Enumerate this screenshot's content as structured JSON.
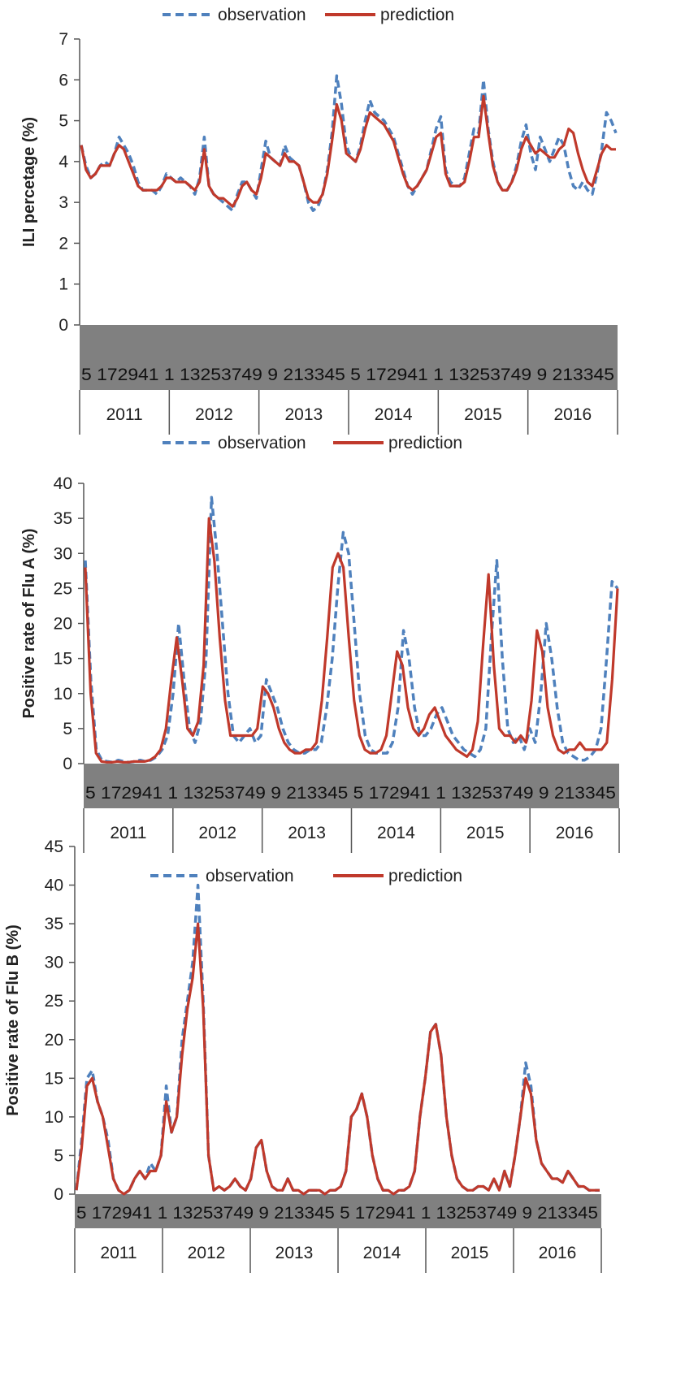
{
  "colors": {
    "observation": "#4f81bd",
    "prediction": "#c0392b",
    "axis_band": "#808080",
    "axis_line": "#555555"
  },
  "legend": {
    "observation": "observation",
    "prediction": "prediction"
  },
  "chart_data": [
    {
      "type": "line",
      "ylabel": "ILI percetage (%)",
      "ylim": [
        0,
        7
      ],
      "yticks": [
        0,
        1,
        2,
        3,
        4,
        5,
        6,
        7
      ],
      "week_labels": "5 172941 1 13253749 9 213345 5 172941 1 13253749 9 213345",
      "years": [
        "2011",
        "2012",
        "2013",
        "2014",
        "2015",
        "2016"
      ],
      "legend_position": "top-center",
      "grid": false,
      "series": [
        {
          "name": "observation",
          "style": "dashed",
          "values": [
            4.4,
            3.9,
            3.6,
            3.7,
            3.9,
            4.0,
            3.9,
            4.2,
            4.6,
            4.4,
            4.2,
            3.9,
            3.5,
            3.3,
            3.3,
            3.3,
            3.2,
            3.4,
            3.7,
            3.6,
            3.5,
            3.6,
            3.5,
            3.4,
            3.2,
            3.6,
            4.6,
            3.4,
            3.2,
            3.1,
            3.0,
            2.9,
            2.8,
            3.2,
            3.5,
            3.5,
            3.3,
            3.1,
            3.8,
            4.5,
            4.1,
            4.0,
            3.9,
            4.4,
            4.1,
            4.0,
            3.9,
            3.5,
            3.0,
            2.8,
            2.9,
            3.2,
            3.8,
            4.7,
            6.1,
            5.4,
            4.4,
            4.1,
            4.0,
            4.4,
            5.0,
            5.5,
            5.2,
            5.1,
            5.0,
            4.8,
            4.6,
            4.2,
            3.8,
            3.4,
            3.2,
            3.4,
            3.6,
            3.8,
            4.3,
            4.8,
            5.1,
            3.8,
            3.5,
            3.4,
            3.4,
            3.6,
            4.2,
            4.8,
            4.7,
            6.0,
            4.8,
            4.0,
            3.5,
            3.3,
            3.3,
            3.5,
            3.9,
            4.5,
            4.9,
            4.2,
            3.8,
            4.6,
            4.3,
            4.0,
            4.3,
            4.6,
            4.4,
            3.8,
            3.4,
            3.3,
            3.5,
            3.3,
            3.2,
            3.7,
            4.3,
            5.2,
            5.0,
            4.7
          ]
        },
        {
          "name": "prediction",
          "style": "solid",
          "values": [
            4.4,
            3.8,
            3.6,
            3.7,
            3.9,
            3.9,
            3.9,
            4.2,
            4.4,
            4.3,
            4.0,
            3.7,
            3.4,
            3.3,
            3.3,
            3.3,
            3.3,
            3.4,
            3.6,
            3.6,
            3.5,
            3.5,
            3.5,
            3.4,
            3.3,
            3.5,
            4.3,
            3.4,
            3.2,
            3.1,
            3.1,
            3.0,
            2.9,
            3.1,
            3.4,
            3.5,
            3.3,
            3.2,
            3.6,
            4.2,
            4.1,
            4.0,
            3.9,
            4.2,
            4.0,
            4.0,
            3.9,
            3.5,
            3.1,
            3.0,
            3.0,
            3.2,
            3.7,
            4.5,
            5.4,
            5.0,
            4.2,
            4.1,
            4.0,
            4.3,
            4.8,
            5.2,
            5.1,
            5.0,
            4.9,
            4.7,
            4.5,
            4.1,
            3.7,
            3.4,
            3.3,
            3.4,
            3.6,
            3.8,
            4.2,
            4.6,
            4.7,
            3.7,
            3.4,
            3.4,
            3.4,
            3.5,
            4.0,
            4.6,
            4.6,
            5.6,
            4.7,
            3.9,
            3.5,
            3.3,
            3.3,
            3.5,
            3.8,
            4.3,
            4.6,
            4.4,
            4.2,
            4.3,
            4.2,
            4.1,
            4.1,
            4.3,
            4.4,
            4.8,
            4.7,
            4.2,
            3.8,
            3.5,
            3.4,
            3.8,
            4.2,
            4.4,
            4.3,
            4.3
          ]
        }
      ]
    },
    {
      "type": "line",
      "ylabel": "Positive rate of Flu A (%)",
      "ylim": [
        0,
        40
      ],
      "yticks": [
        0,
        5,
        10,
        15,
        20,
        25,
        30,
        35,
        40
      ],
      "week_labels": "5 172941 1 13253749 9 213345 5 172941 1 13253749 9 213345",
      "years": [
        "2011",
        "2012",
        "2013",
        "2014",
        "2015",
        "2016"
      ],
      "legend_position": "top-center",
      "grid": false,
      "series": [
        {
          "name": "observation",
          "style": "dashed",
          "values": [
            29,
            12,
            2,
            0.5,
            0.3,
            0.2,
            0.5,
            0.3,
            0.2,
            0.3,
            0.5,
            0.3,
            0.5,
            1,
            2,
            4,
            10,
            20,
            12,
            5,
            3,
            6,
            15,
            38,
            30,
            20,
            10,
            4,
            3,
            4,
            5,
            3,
            4,
            12,
            10,
            8,
            5,
            3,
            2,
            1.5,
            1.5,
            2,
            2,
            3,
            8,
            15,
            25,
            33,
            30,
            20,
            10,
            4,
            2,
            1.5,
            1.5,
            1.5,
            3,
            8,
            19,
            15,
            8,
            4,
            4,
            5,
            7,
            8,
            6,
            4,
            3,
            2,
            1.5,
            1,
            2,
            5,
            18,
            29,
            15,
            5,
            3,
            4,
            2,
            5,
            3,
            10,
            20,
            15,
            8,
            3,
            1.5,
            1,
            0.5,
            0.5,
            1,
            2,
            5,
            15,
            26,
            25
          ]
        },
        {
          "name": "prediction",
          "style": "solid",
          "values": [
            28,
            10,
            1.5,
            0.3,
            0.2,
            0.2,
            0.3,
            0.2,
            0.2,
            0.3,
            0.3,
            0.3,
            0.5,
            1,
            2,
            5,
            12,
            18,
            12,
            5,
            4,
            6,
            14,
            35,
            29,
            18,
            9,
            4,
            4,
            4,
            4,
            4,
            5,
            11,
            10,
            8,
            5,
            3,
            2,
            1.5,
            1.5,
            2,
            2,
            3,
            9,
            18,
            28,
            30,
            28,
            18,
            9,
            4,
            2,
            1.5,
            1.5,
            2,
            4,
            10,
            16,
            14,
            8,
            5,
            4,
            5,
            7,
            8,
            6,
            4,
            3,
            2,
            1.5,
            1,
            2,
            6,
            17,
            27,
            14,
            5,
            4,
            4,
            3,
            4,
            3,
            9,
            19,
            16,
            8,
            4,
            2,
            1.5,
            2,
            2,
            3,
            2,
            2,
            2,
            2,
            3,
            12,
            25
          ]
        }
      ]
    },
    {
      "type": "line",
      "ylabel": "Positive rate of Flu B (%)",
      "ylim": [
        0,
        45
      ],
      "yticks": [
        0,
        5,
        10,
        15,
        20,
        25,
        30,
        35,
        40,
        45
      ],
      "week_labels": "5 172941 1 13253749 9 213345 5 172941 1 13253749 9 213345",
      "years": [
        "2011",
        "2012",
        "2013",
        "2014",
        "2015",
        "2016"
      ],
      "legend_position": "top-center",
      "grid": false,
      "series": [
        {
          "name": "observation",
          "style": "dashed",
          "values": [
            0.5,
            7,
            15,
            16,
            12,
            10,
            7,
            2,
            0.5,
            0,
            0.5,
            2,
            3,
            2,
            4,
            3,
            5,
            14,
            8,
            10,
            20,
            25,
            30,
            40,
            25,
            5,
            0.5,
            1,
            0.5,
            1,
            2,
            1,
            0.5,
            2,
            6,
            7,
            3,
            1,
            0.5,
            0.5,
            2,
            0.5,
            0.5,
            0,
            0.5,
            0.5,
            0.5,
            0,
            0.5,
            0.5,
            1,
            3,
            10,
            11,
            13,
            10,
            5,
            2,
            0.5,
            0.5,
            0,
            0.5,
            0.5,
            1,
            3,
            10,
            15,
            21,
            22,
            18,
            10,
            5,
            2,
            1,
            0.5,
            0.5,
            1,
            1,
            0.5,
            2,
            0.5,
            3,
            1,
            5,
            10,
            17,
            14,
            7,
            4,
            3,
            2,
            2,
            1.5,
            3,
            2,
            1,
            1,
            0.5,
            0.5,
            0.5
          ]
        },
        {
          "name": "prediction",
          "style": "solid",
          "values": [
            0.5,
            6,
            14,
            15,
            12,
            10,
            6,
            2,
            0.5,
            0,
            0.5,
            2,
            3,
            2,
            3,
            3,
            5,
            12,
            8,
            10,
            18,
            24,
            28,
            35,
            24,
            5,
            0.5,
            1,
            0.5,
            1,
            2,
            1,
            0.5,
            2,
            6,
            7,
            3,
            1,
            0.5,
            0.5,
            2,
            0.5,
            0.5,
            0,
            0.5,
            0.5,
            0.5,
            0,
            0.5,
            0.5,
            1,
            3,
            10,
            11,
            13,
            10,
            5,
            2,
            0.5,
            0.5,
            0,
            0.5,
            0.5,
            1,
            3,
            10,
            15,
            21,
            22,
            18,
            10,
            5,
            2,
            1,
            0.5,
            0.5,
            1,
            1,
            0.5,
            2,
            0.5,
            3,
            1,
            5,
            10,
            15,
            13,
            7,
            4,
            3,
            2,
            2,
            1.5,
            3,
            2,
            1,
            1,
            0.5,
            0.5,
            0.5
          ]
        }
      ]
    }
  ]
}
